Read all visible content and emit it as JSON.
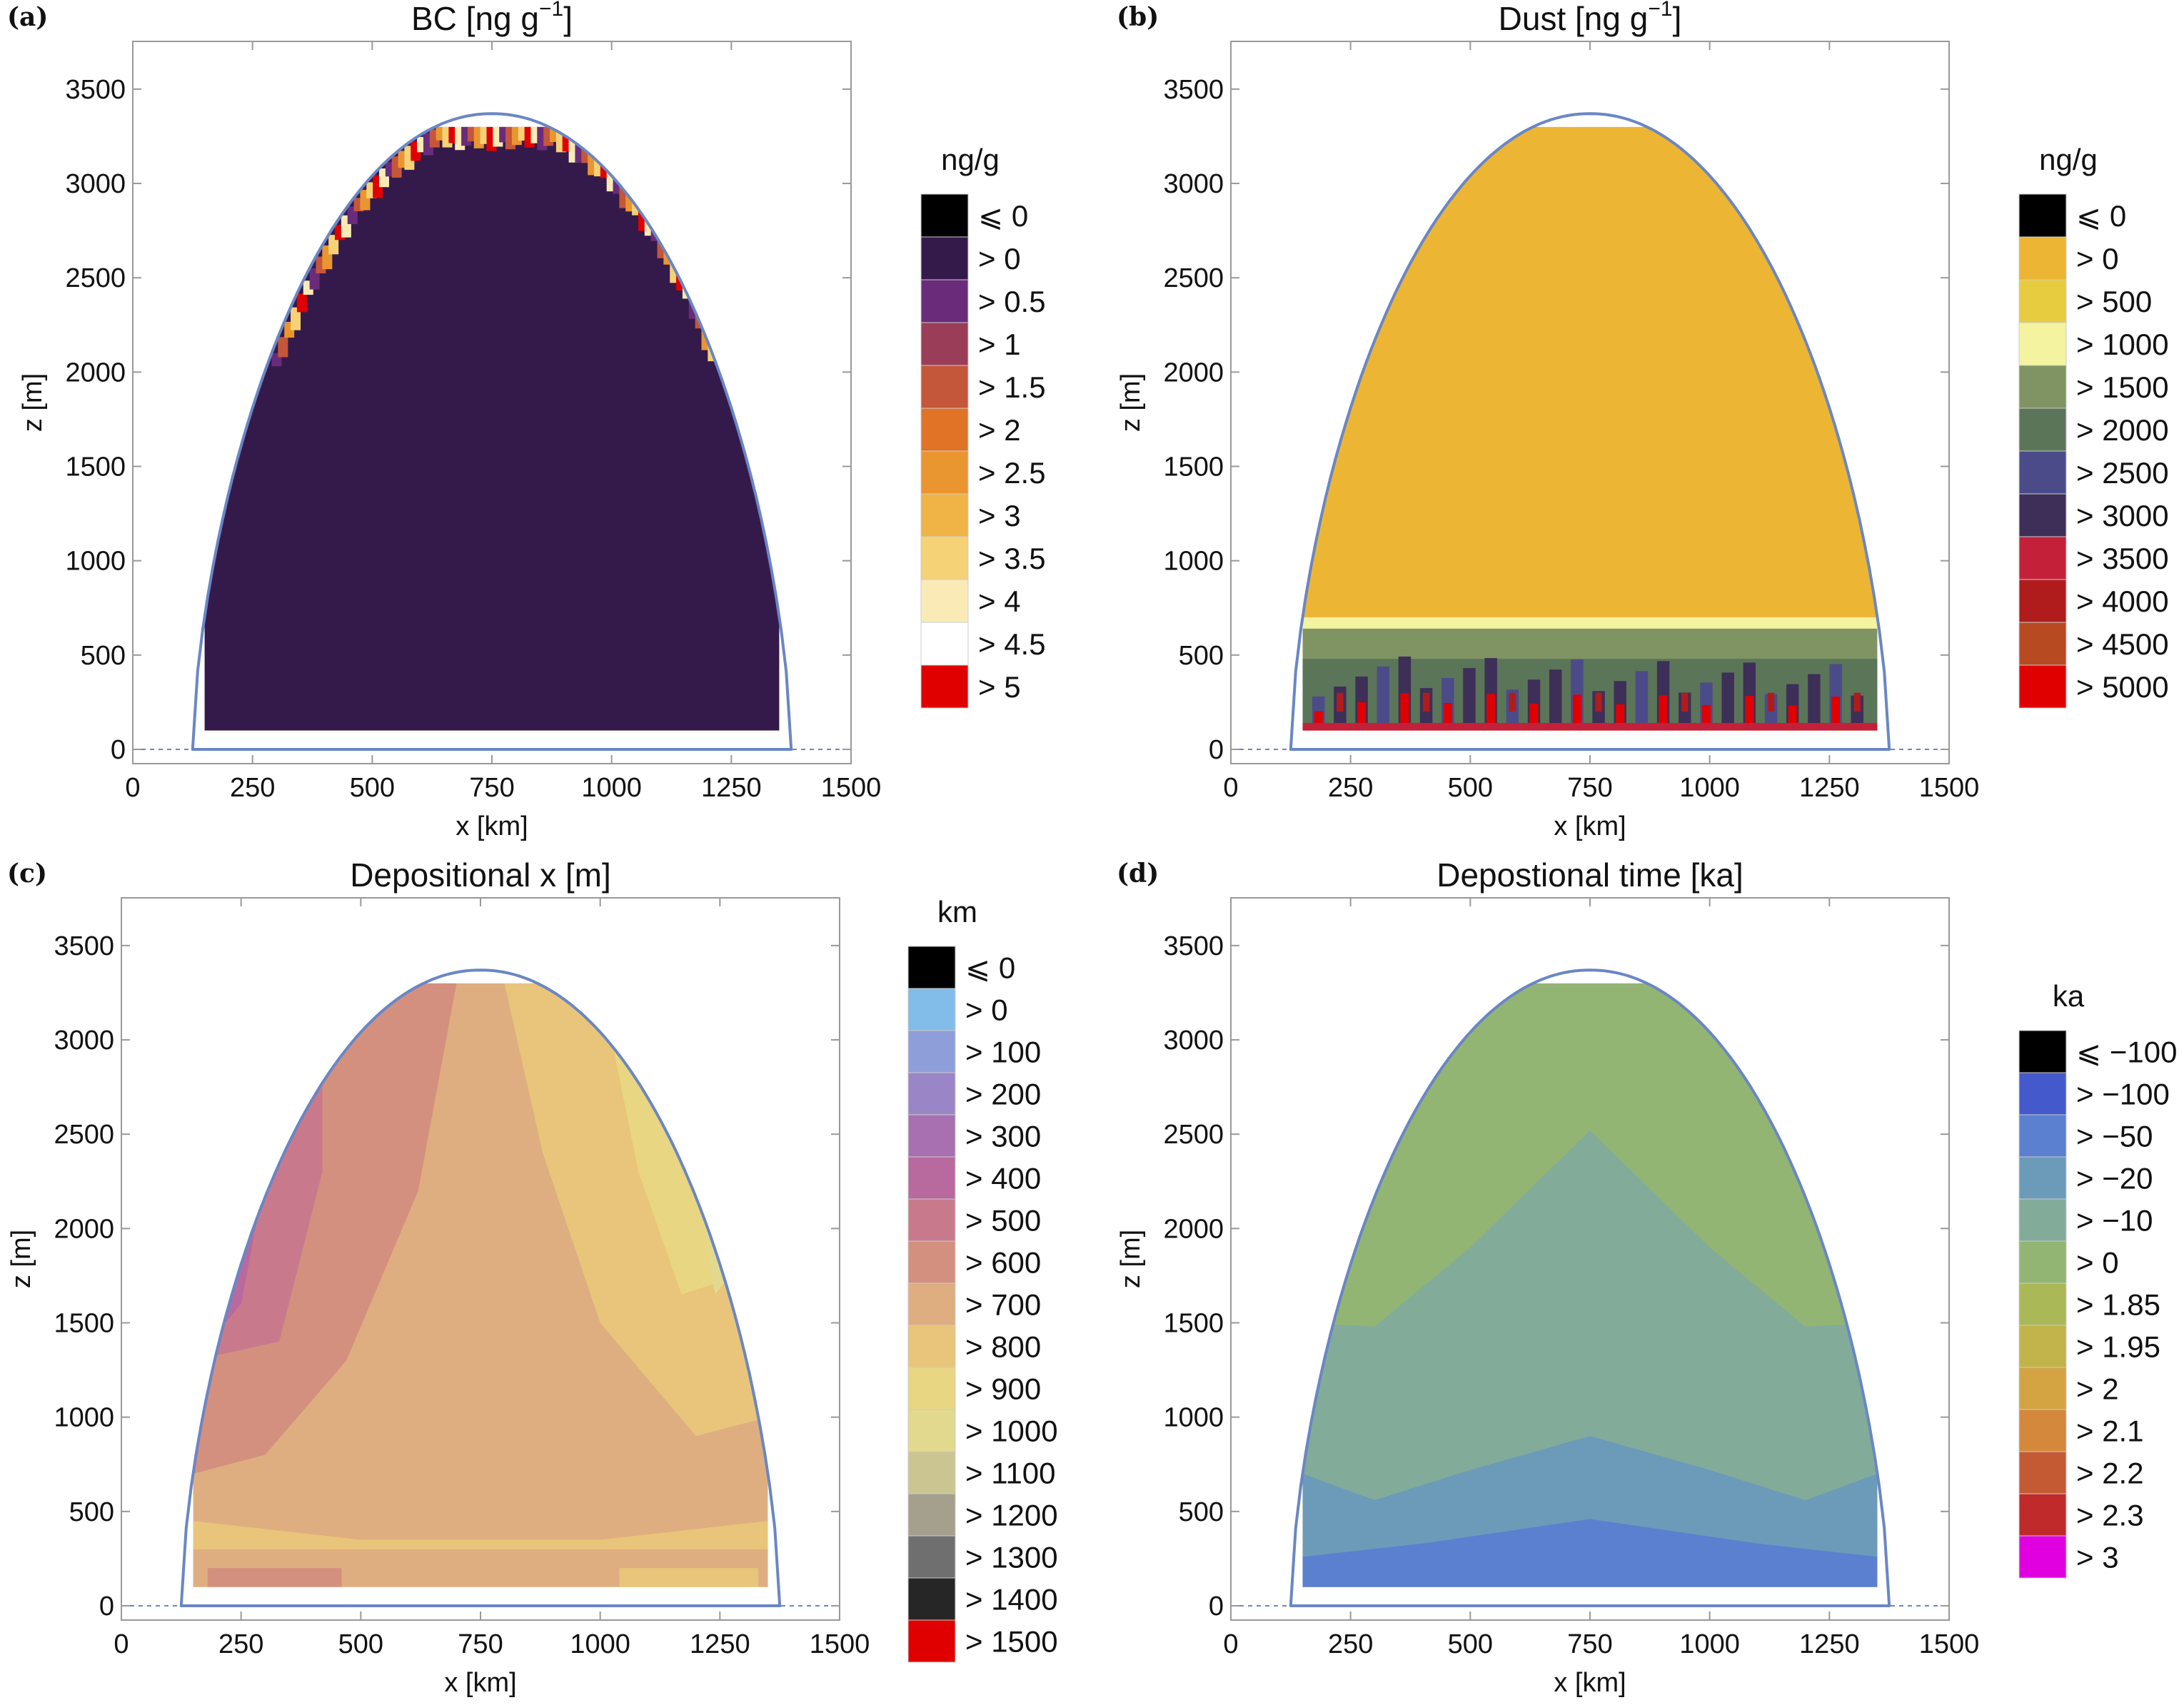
{
  "colors": {
    "outline": "#6a86c4",
    "frame": "#999999",
    "text": "#111111"
  },
  "chart_data": [
    {
      "type": "heatmap",
      "panel_label": "(a)",
      "title_parts": [
        "BC [ng g",
        "−1",
        "]"
      ],
      "xlabel": "x [km]",
      "ylabel": "z [m]",
      "xlim": [
        0,
        1500
      ],
      "ylim": [
        0,
        3700
      ],
      "x_ticks": [
        "0",
        "250",
        "500",
        "750",
        "1000",
        "1250",
        "1500"
      ],
      "y_ticks": [
        "0",
        "500",
        "1000",
        "1500",
        "2000",
        "2500",
        "3000",
        "3500"
      ],
      "grid": false,
      "legend_placement": "right",
      "legend_title": "ng/g",
      "legend": [
        {
          "label": "⩽ 0",
          "color": "#000000"
        },
        {
          "label": "> 0",
          "color": "#341a4a"
        },
        {
          "label": "> 0.5",
          "color": "#6a2c7a"
        },
        {
          "label": "> 1",
          "color": "#9a3d58"
        },
        {
          "label": "> 1.5",
          "color": "#c4563a"
        },
        {
          "label": "> 2",
          "color": "#e07326"
        },
        {
          "label": "> 2.5",
          "color": "#ea9630"
        },
        {
          "label": "> 3",
          "color": "#efb445"
        },
        {
          "label": "> 3.5",
          "color": "#f5d276"
        },
        {
          "label": "> 4",
          "color": "#faebb6"
        },
        {
          "label": "> 4.5",
          "color": "#ffffff"
        },
        {
          "label": "> 5",
          "color": "#e00000"
        }
      ],
      "ice_sheet_surface": {
        "x_range": [
          125,
          1375
        ],
        "summit": [
          750,
          3370
        ]
      },
      "field": "nearly uniform > 0 (0–0.5 ng/g) throughout; thin band of elevated values up to > 5 ng/g along the upper surface between z ≈ 2000 and 3300 m"
    },
    {
      "type": "heatmap",
      "panel_label": "(b)",
      "title_parts": [
        "Dust [ng g",
        "−1",
        "]"
      ],
      "xlabel": "x [km]",
      "ylabel": "z [m]",
      "xlim": [
        0,
        1500
      ],
      "ylim": [
        0,
        3700
      ],
      "x_ticks": [
        "0",
        "250",
        "500",
        "750",
        "1000",
        "1250",
        "1500"
      ],
      "y_ticks": [
        "0",
        "500",
        "1000",
        "1500",
        "2000",
        "2500",
        "3000",
        "3500"
      ],
      "grid": false,
      "legend_placement": "right",
      "legend_title": "ng/g",
      "legend": [
        {
          "label": "⩽ 0",
          "color": "#000000"
        },
        {
          "label": "> 0",
          "color": "#ecb634"
        },
        {
          "label": "> 500",
          "color": "#e8cc40"
        },
        {
          "label": "> 1000",
          "color": "#f4f3a0"
        },
        {
          "label": "> 1500",
          "color": "#7f9462"
        },
        {
          "label": "> 2000",
          "color": "#5b7558"
        },
        {
          "label": "> 2500",
          "color": "#4b4b8a"
        },
        {
          "label": "> 3000",
          "color": "#3d2f58"
        },
        {
          "label": "> 3500",
          "color": "#c4203a"
        },
        {
          "label": "> 4000",
          "color": "#b01c1c"
        },
        {
          "label": "> 4500",
          "color": "#b84a22"
        },
        {
          "label": "> 5000",
          "color": "#e00000"
        }
      ],
      "ice_sheet_surface": {
        "x_range": [
          125,
          1375
        ],
        "summit": [
          750,
          3370
        ]
      },
      "field": "> 0 (0–500 ng/g) above z ≈ 700 m; noisy band of high values (1500 to > 5000 ng/g) in the lowest ~600 m"
    },
    {
      "type": "heatmap",
      "panel_label": "(c)",
      "title": "Depositional x [m]",
      "xlabel": "x [km]",
      "ylabel": "z [m]",
      "xlim": [
        0,
        1500
      ],
      "ylim": [
        0,
        3700
      ],
      "x_ticks": [
        "0",
        "250",
        "500",
        "750",
        "1000",
        "1250",
        "1500"
      ],
      "y_ticks": [
        "0",
        "500",
        "1000",
        "1500",
        "2000",
        "2500",
        "3000",
        "3500"
      ],
      "grid": false,
      "legend_placement": "right",
      "legend_title": "km",
      "legend": [
        {
          "label": "⩽ 0",
          "color": "#000000"
        },
        {
          "label": "> 0",
          "color": "#82bce8"
        },
        {
          "label": "> 100",
          "color": "#8e9ed8"
        },
        {
          "label": "> 200",
          "color": "#9a86c6"
        },
        {
          "label": "> 300",
          "color": "#a870b0"
        },
        {
          "label": "> 400",
          "color": "#b86a9e"
        },
        {
          "label": "> 500",
          "color": "#c87a8c"
        },
        {
          "label": "> 600",
          "color": "#d4907e"
        },
        {
          "label": "> 700",
          "color": "#dfae80"
        },
        {
          "label": "> 800",
          "color": "#e8c57a"
        },
        {
          "label": "> 900",
          "color": "#e9d682"
        },
        {
          "label": "> 1000",
          "color": "#e2d98e"
        },
        {
          "label": "> 1100",
          "color": "#cbc592"
        },
        {
          "label": "> 1200",
          "color": "#a5a08d"
        },
        {
          "label": "> 1300",
          "color": "#6f6f6f"
        },
        {
          "label": "> 1400",
          "color": "#262626"
        },
        {
          "label": "> 1500",
          "color": "#e00000"
        }
      ],
      "ice_sheet_surface": {
        "x_range": [
          125,
          1375
        ],
        "summit": [
          750,
          3370
        ]
      },
      "field": "depositional x increases from ~200 km at the left flank to ~1100 km at the right flank; deep ice mostly > 700 km"
    },
    {
      "type": "heatmap",
      "panel_label": "(d)",
      "title": "Depostional time [ka]",
      "xlabel": "x [km]",
      "ylabel": "z [m]",
      "xlim": [
        0,
        1500
      ],
      "ylim": [
        0,
        3700
      ],
      "x_ticks": [
        "0",
        "250",
        "500",
        "750",
        "1000",
        "1250",
        "1500"
      ],
      "y_ticks": [
        "0",
        "500",
        "1000",
        "1500",
        "2000",
        "2500",
        "3000",
        "3500"
      ],
      "grid": false,
      "legend_placement": "right",
      "legend_title": "ka",
      "legend": [
        {
          "label": "⩽ −100",
          "color": "#000000"
        },
        {
          "label": "> −100",
          "color": "#4459cc"
        },
        {
          "label": "> −50",
          "color": "#5b80d0"
        },
        {
          "label": "> −20",
          "color": "#6b9bb9"
        },
        {
          "label": "> −10",
          "color": "#82ab9a"
        },
        {
          "label": "> 0",
          "color": "#93b574"
        },
        {
          "label": "> 1.85",
          "color": "#abb858"
        },
        {
          "label": "> 1.95",
          "color": "#c2b44a"
        },
        {
          "label": "> 2",
          "color": "#d4a442"
        },
        {
          "label": "> 2.1",
          "color": "#d4883c"
        },
        {
          "label": "> 2.2",
          "color": "#c45a34"
        },
        {
          "label": "> 2.3",
          "color": "#c02a2a"
        },
        {
          "label": "> 3",
          "color": "#e000e0"
        }
      ],
      "ice_sheet_surface": {
        "x_range": [
          125,
          1375
        ],
        "summit": [
          750,
          3370
        ]
      },
      "field": "youngest ice (> 0 ka) in upper layers, progressively older downward; deepest ice (> −100 ka) near the bed"
    }
  ]
}
